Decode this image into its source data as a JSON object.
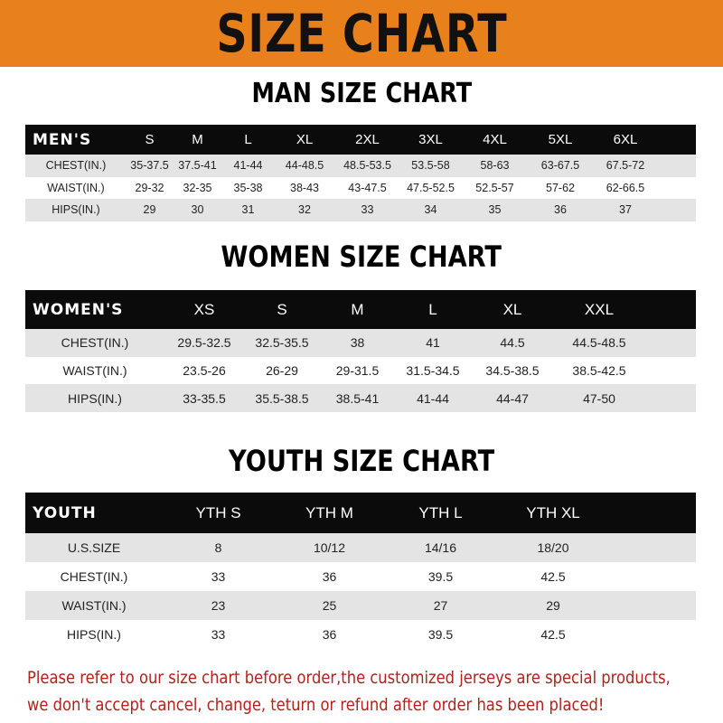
{
  "banner": {
    "title": "SIZE CHART",
    "color": "#e8801c"
  },
  "men": {
    "title": "MAN SIZE CHART",
    "header": [
      "MEN'S",
      "S",
      "M",
      "L",
      "XL",
      "2XL",
      "3XL",
      "4XL",
      "5XL",
      "6XL"
    ],
    "rows": [
      [
        "CHEST(IN.)",
        "35-37.5",
        "37.5-41",
        "41-44",
        "44-48.5",
        "48.5-53.5",
        "53.5-58",
        "58-63",
        "63-67.5",
        "67.5-72"
      ],
      [
        "WAIST(IN.)",
        "29-32",
        "32-35",
        "35-38",
        "38-43",
        "43-47.5",
        "47.5-52.5",
        "52.5-57",
        "57-62",
        "62-66.5"
      ],
      [
        "HIPS(IN.)",
        "29",
        "30",
        "31",
        "32",
        "33",
        "34",
        "35",
        "36",
        "37"
      ]
    ]
  },
  "women": {
    "title": "WOMEN SIZE CHART",
    "header": [
      "WOMEN'S",
      "XS",
      "S",
      "M",
      "L",
      "XL",
      "XXL"
    ],
    "rows": [
      [
        "CHEST(IN.)",
        "29.5-32.5",
        "32.5-35.5",
        "38",
        "41",
        "44.5",
        "44.5-48.5"
      ],
      [
        "WAIST(IN.)",
        "23.5-26",
        "26-29",
        "29-31.5",
        "31.5-34.5",
        "34.5-38.5",
        "38.5-42.5"
      ],
      [
        "HIPS(IN.)",
        "33-35.5",
        "35.5-38.5",
        "38.5-41",
        "41-44",
        "44-47",
        "47-50"
      ]
    ]
  },
  "youth": {
    "title": "YOUTH SIZE CHART",
    "header": [
      "YOUTH",
      "YTH S",
      "YTH M",
      "YTH L",
      "YTH XL"
    ],
    "rows": [
      [
        "U.S.SIZE",
        "8",
        "10/12",
        "14/16",
        "18/20"
      ],
      [
        "CHEST(IN.)",
        "33",
        "36",
        "39.5",
        "42.5"
      ],
      [
        "WAIST(IN.)",
        "23",
        "25",
        "27",
        "29"
      ],
      [
        "HIPS(IN.)",
        "33",
        "36",
        "39.5",
        "42.5"
      ]
    ]
  },
  "notice": {
    "line1": "Please refer to our size chart before order,the customized jerseys are special products,",
    "line2": "we don't accept cancel, change, teturn or refund after order has been placed!",
    "color": "#b0201c"
  }
}
